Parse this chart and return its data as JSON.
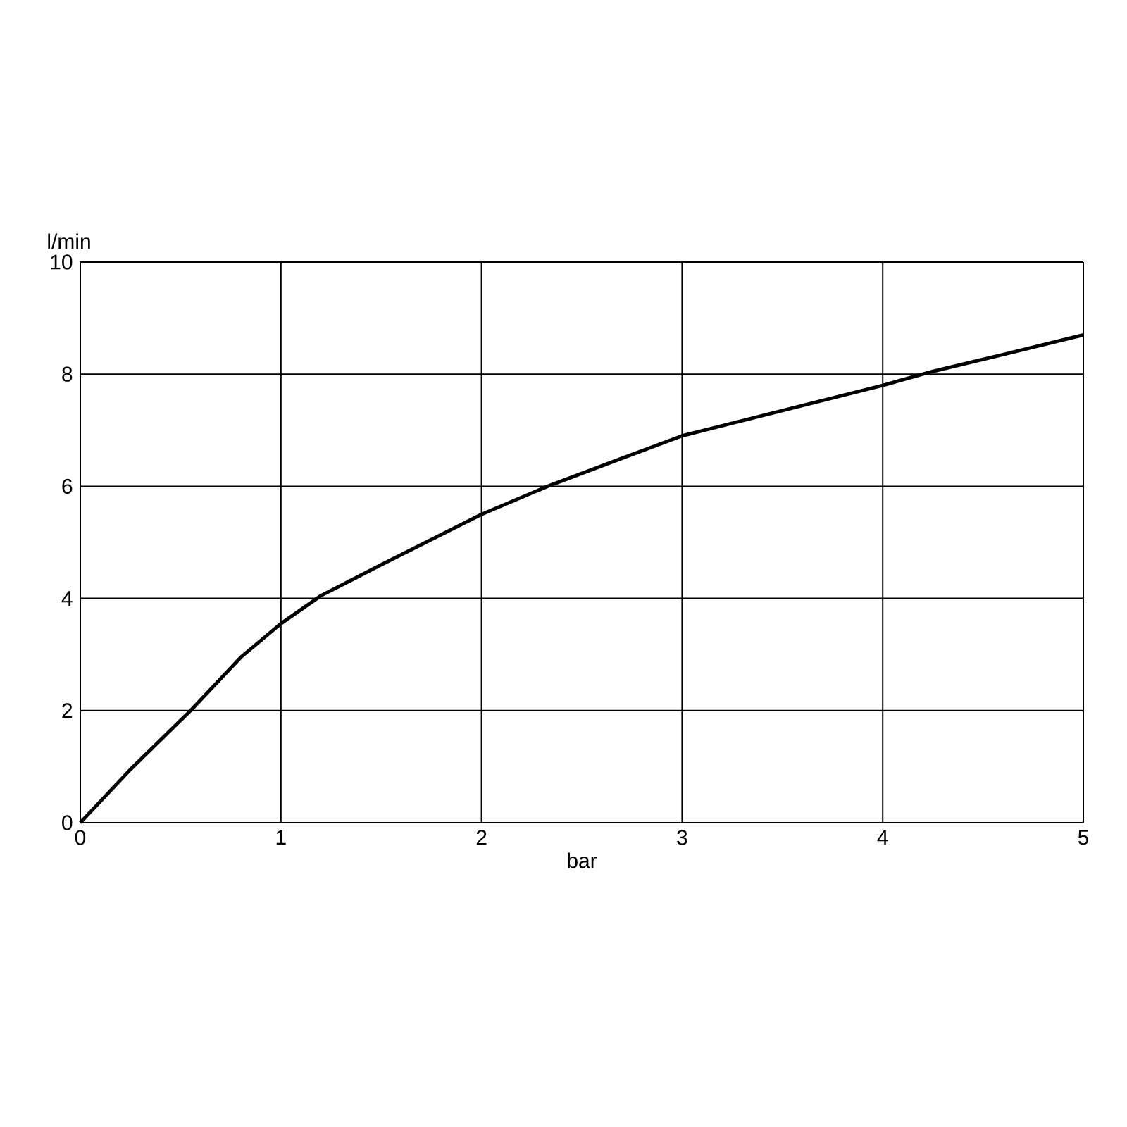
{
  "chart_data": {
    "type": "line",
    "xlabel": "bar",
    "ylabel": "l/min",
    "x": [
      0,
      0.25,
      0.55,
      0.8,
      1,
      1.2,
      1.5,
      2,
      2.33,
      2.7,
      3,
      3.5,
      4,
      4.25,
      4.6,
      5
    ],
    "values": [
      0,
      0.95,
      2,
      2.95,
      3.55,
      4.05,
      4.6,
      5.5,
      6,
      6.5,
      6.9,
      7.35,
      7.8,
      8.05,
      8.35,
      8.7
    ],
    "color": "#000000",
    "xlim": [
      0,
      5
    ],
    "ylim": [
      0,
      10
    ],
    "xticks": [
      0,
      1,
      2,
      3,
      4,
      5
    ],
    "yticks": [
      0,
      2,
      4,
      6,
      8,
      10
    ],
    "grid": true,
    "marker": "none",
    "line_style": "solid"
  }
}
